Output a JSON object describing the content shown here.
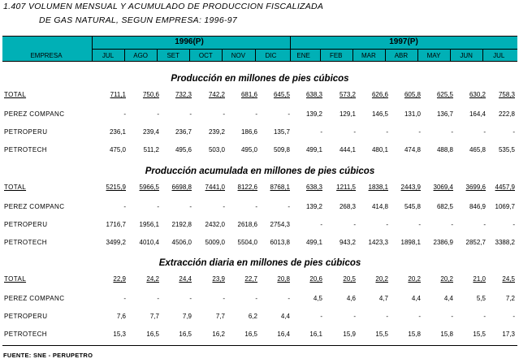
{
  "title_line1": "1.407   VOLUMEN MENSUAL Y ACUMULADO DE PRODUCCION FISCALIZADA",
  "title_line2": "DE GAS NATURAL, SEGUN EMPRESA: 1996-97",
  "header": {
    "empresa": "EMPRESA",
    "year1996": "1996(P)",
    "year1997": "1997(P)",
    "months": [
      "JUL",
      "AGO",
      "SET",
      "OCT",
      "NOV",
      "DIC",
      "ENE",
      "FEB",
      "MAR",
      "ABR",
      "MAY",
      "JUN",
      "JUL"
    ]
  },
  "sections": [
    {
      "title": "Producción en millones de pies cúbicos",
      "rows": [
        {
          "label": "TOTAL",
          "values": [
            "711,1",
            "750,6",
            "732,3",
            "742,2",
            "681,6",
            "645,5",
            "638,3",
            "573,2",
            "626,6",
            "605,8",
            "625,5",
            "630,2",
            "758,3"
          ]
        },
        {
          "label": "PEREZ COMPANC",
          "values": [
            "-",
            "-",
            "-",
            "-",
            "-",
            "-",
            "139,2",
            "129,1",
            "146,5",
            "131,0",
            "136,7",
            "164,4",
            "222,8"
          ]
        },
        {
          "label": "PETROPERU",
          "values": [
            "236,1",
            "239,4",
            "236,7",
            "239,2",
            "186,6",
            "135,7",
            "-",
            "-",
            "-",
            "-",
            "-",
            "-",
            "-"
          ]
        },
        {
          "label": "PETROTECH",
          "values": [
            "475,0",
            "511,2",
            "495,6",
            "503,0",
            "495,0",
            "509,8",
            "499,1",
            "444,1",
            "480,1",
            "474,8",
            "488,8",
            "465,8",
            "535,5"
          ]
        }
      ]
    },
    {
      "title": "Producción acumulada en millones de pies cúbicos",
      "rows": [
        {
          "label": "TOTAL",
          "values": [
            "5215,9",
            "5966,5",
            "6698,8",
            "7441,0",
            "8122,6",
            "8768,1",
            "638,3",
            "1211,5",
            "1838,1",
            "2443,9",
            "3069,4",
            "3699,6",
            "4457,9"
          ]
        },
        {
          "label": "PEREZ COMPANC",
          "values": [
            "-",
            "-",
            "-",
            "-",
            "-",
            "-",
            "139,2",
            "268,3",
            "414,8",
            "545,8",
            "682,5",
            "846,9",
            "1069,7"
          ]
        },
        {
          "label": "PETROPERU",
          "values": [
            "1716,7",
            "1956,1",
            "2192,8",
            "2432,0",
            "2618,6",
            "2754,3",
            "-",
            "-",
            "-",
            "-",
            "-",
            "-",
            "-"
          ]
        },
        {
          "label": "PETROTECH",
          "values": [
            "3499,2",
            "4010,4",
            "4506,0",
            "5009,0",
            "5504,0",
            "6013,8",
            "499,1",
            "943,2",
            "1423,3",
            "1898,1",
            "2386,9",
            "2852,7",
            "3388,2"
          ]
        }
      ]
    },
    {
      "title": "Extracción diaria en millones de pies cúbicos",
      "rows": [
        {
          "label": "TOTAL",
          "values": [
            "22,9",
            "24,2",
            "24,4",
            "23,9",
            "22,7",
            "20,8",
            "20,6",
            "20,5",
            "20,2",
            "20,2",
            "20,2",
            "21,0",
            "24,5"
          ]
        },
        {
          "label": "PEREZ COMPANC",
          "values": [
            "-",
            "-",
            "-",
            "-",
            "-",
            "-",
            "4,5",
            "4,6",
            "4,7",
            "4,4",
            "4,4",
            "5,5",
            "7,2"
          ]
        },
        {
          "label": "PETROPERU",
          "values": [
            "7,6",
            "7,7",
            "7,9",
            "7,7",
            "6,2",
            "4,4",
            "-",
            "-",
            "-",
            "-",
            "-",
            "-",
            "-"
          ]
        },
        {
          "label": "PETROTECH",
          "values": [
            "15,3",
            "16,5",
            "16,5",
            "16,2",
            "16,5",
            "16,4",
            "16,1",
            "15,9",
            "15,5",
            "15,8",
            "15,8",
            "15,5",
            "17,3"
          ]
        }
      ]
    }
  ],
  "source": "FUENTE: SNE - PERUPETRO"
}
